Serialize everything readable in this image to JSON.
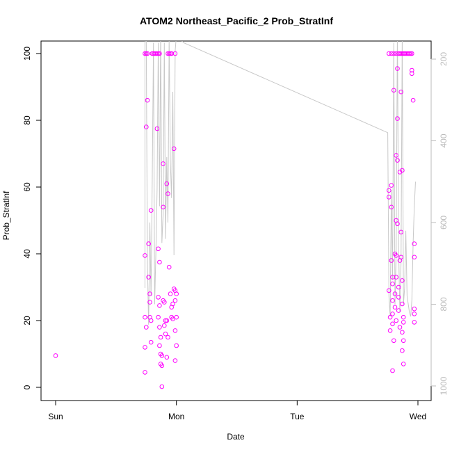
{
  "chart_data": {
    "type": "scatter",
    "title": "ATOM2 Northeast_Pacific_2 Prob_StratInf",
    "xlabel": "Date",
    "ylabel": "Prob_StratInf",
    "x_ticks": [
      "Sun",
      "Mon",
      "Tue",
      "Wed"
    ],
    "ylim": [
      0,
      100
    ],
    "y_ticks": [
      "0",
      "20",
      "40",
      "60",
      "80",
      "100"
    ],
    "y2_ticks": [
      "200",
      "400",
      "600",
      "800",
      "1000"
    ],
    "y2lim": [
      1000,
      200
    ],
    "y2_reversed": true,
    "colors": {
      "points": "#ff00ff",
      "line": "#c8c8c8",
      "right_axis": "#bbbbbb"
    },
    "series": [
      {
        "kind": "points",
        "x_units": "days since Sun 00:00",
        "data": [
          [
            0.0,
            9.5
          ],
          [
            0.74,
            100
          ],
          [
            0.75,
            100
          ],
          [
            0.76,
            100
          ],
          [
            0.74,
            39.5
          ],
          [
            0.75,
            78
          ],
          [
            0.74,
            21
          ],
          [
            0.75,
            18
          ],
          [
            0.74,
            12
          ],
          [
            0.74,
            4.5
          ],
          [
            0.76,
            86
          ],
          [
            0.77,
            43
          ],
          [
            0.77,
            33
          ],
          [
            0.78,
            28
          ],
          [
            0.78,
            25.5
          ],
          [
            0.78,
            21
          ],
          [
            0.79,
            53
          ],
          [
            0.79,
            20
          ],
          [
            0.79,
            13.5
          ],
          [
            0.8,
            100
          ],
          [
            0.81,
            100
          ],
          [
            0.82,
            100
          ],
          [
            0.83,
            100
          ],
          [
            0.84,
            100
          ],
          [
            0.85,
            100
          ],
          [
            0.86,
            100
          ],
          [
            0.84,
            77.5
          ],
          [
            0.85,
            41.5
          ],
          [
            0.86,
            37.5
          ],
          [
            0.85,
            27
          ],
          [
            0.86,
            24.5
          ],
          [
            0.85,
            21
          ],
          [
            0.86,
            18
          ],
          [
            0.87,
            15
          ],
          [
            0.86,
            12.5
          ],
          [
            0.87,
            10
          ],
          [
            0.88,
            9.5
          ],
          [
            0.87,
            7
          ],
          [
            0.88,
            6.5
          ],
          [
            0.88,
            0.2
          ],
          [
            0.89,
            67
          ],
          [
            0.89,
            54
          ],
          [
            0.89,
            26
          ],
          [
            0.9,
            25.5
          ],
          [
            0.91,
            20
          ],
          [
            0.9,
            18.5
          ],
          [
            0.91,
            16
          ],
          [
            0.92,
            61
          ],
          [
            0.92,
            20
          ],
          [
            0.93,
            15
          ],
          [
            0.92,
            9
          ],
          [
            0.93,
            100
          ],
          [
            0.94,
            100
          ],
          [
            0.95,
            100
          ],
          [
            0.96,
            100
          ],
          [
            0.99,
            100
          ],
          [
            0.93,
            58
          ],
          [
            0.94,
            36
          ],
          [
            0.95,
            28
          ],
          [
            0.96,
            24
          ],
          [
            0.96,
            21
          ],
          [
            0.97,
            20.5
          ],
          [
            0.97,
            25
          ],
          [
            0.98,
            29.5
          ],
          [
            0.98,
            71.5
          ],
          [
            0.99,
            29
          ],
          [
            1.0,
            28
          ],
          [
            0.99,
            26
          ],
          [
            1.0,
            21
          ],
          [
            0.99,
            17
          ],
          [
            1.0,
            12.5
          ],
          [
            0.99,
            8
          ],
          [
            2.76,
            100
          ],
          [
            2.78,
            100
          ],
          [
            2.8,
            100
          ],
          [
            2.82,
            100
          ],
          [
            2.84,
            100
          ],
          [
            2.85,
            100
          ],
          [
            2.86,
            100
          ],
          [
            2.87,
            100
          ],
          [
            2.88,
            100
          ],
          [
            2.89,
            100
          ],
          [
            2.9,
            100
          ],
          [
            2.91,
            100
          ],
          [
            2.92,
            100
          ],
          [
            2.93,
            100
          ],
          [
            2.94,
            100
          ],
          [
            2.95,
            100
          ],
          [
            2.76,
            59
          ],
          [
            2.76,
            57
          ],
          [
            2.76,
            29
          ],
          [
            2.77,
            21
          ],
          [
            2.77,
            17
          ],
          [
            2.78,
            60.5
          ],
          [
            2.78,
            54
          ],
          [
            2.78,
            38
          ],
          [
            2.79,
            33
          ],
          [
            2.79,
            31
          ],
          [
            2.79,
            26
          ],
          [
            2.79,
            22
          ],
          [
            2.79,
            19
          ],
          [
            2.8,
            14
          ],
          [
            2.79,
            5
          ],
          [
            2.8,
            89
          ],
          [
            2.81,
            40
          ],
          [
            2.81,
            28
          ],
          [
            2.81,
            24
          ],
          [
            2.82,
            69.5
          ],
          [
            2.82,
            50
          ],
          [
            2.82,
            39.5
          ],
          [
            2.82,
            33
          ],
          [
            2.82,
            20
          ],
          [
            2.83,
            95.5
          ],
          [
            2.83,
            80.5
          ],
          [
            2.83,
            68
          ],
          [
            2.83,
            49
          ],
          [
            2.84,
            30
          ],
          [
            2.84,
            27
          ],
          [
            2.84,
            23
          ],
          [
            2.85,
            64.5
          ],
          [
            2.85,
            38
          ],
          [
            2.85,
            18
          ],
          [
            2.86,
            88.5
          ],
          [
            2.86,
            46.5
          ],
          [
            2.86,
            39
          ],
          [
            2.87,
            65
          ],
          [
            2.87,
            32
          ],
          [
            2.87,
            25
          ],
          [
            2.87,
            16.5
          ],
          [
            2.87,
            11
          ],
          [
            2.88,
            21
          ],
          [
            2.88,
            19.5
          ],
          [
            2.88,
            14
          ],
          [
            2.88,
            7
          ],
          [
            2.95,
            95
          ],
          [
            2.95,
            94
          ],
          [
            2.96,
            86
          ],
          [
            2.97,
            43
          ],
          [
            2.97,
            39
          ],
          [
            2.97,
            23.5
          ],
          [
            2.97,
            22
          ],
          [
            2.97,
            19.5
          ]
        ]
      },
      {
        "kind": "line",
        "axis": "right",
        "x_units": "days since Sun 00:00",
        "data": [
          [
            0.74,
            760
          ],
          [
            0.74,
            160
          ],
          [
            0.75,
            140
          ],
          [
            0.76,
            700
          ],
          [
            0.77,
            850
          ],
          [
            0.78,
            600
          ],
          [
            0.79,
            780
          ],
          [
            0.8,
            500
          ],
          [
            0.81,
            160
          ],
          [
            0.82,
            800
          ],
          [
            0.83,
            680
          ],
          [
            0.84,
            520
          ],
          [
            0.85,
            160
          ],
          [
            0.86,
            560
          ],
          [
            0.87,
            120
          ],
          [
            0.88,
            650
          ],
          [
            0.89,
            580
          ],
          [
            0.9,
            160
          ],
          [
            0.91,
            640
          ],
          [
            0.92,
            440
          ],
          [
            0.93,
            600
          ],
          [
            0.94,
            150
          ],
          [
            0.95,
            450
          ],
          [
            0.96,
            540
          ],
          [
            0.97,
            280
          ],
          [
            0.98,
            680
          ],
          [
            0.99,
            180
          ],
          [
            1.0,
            140
          ],
          [
            1.03,
            150
          ],
          [
            1.06,
            160
          ],
          [
            2.75,
            380
          ],
          [
            2.76,
            780
          ],
          [
            2.77,
            830
          ],
          [
            2.78,
            520
          ],
          [
            2.79,
            740
          ],
          [
            2.8,
            160
          ],
          [
            2.81,
            800
          ],
          [
            2.82,
            680
          ],
          [
            2.83,
            120
          ],
          [
            2.84,
            660
          ],
          [
            2.85,
            820
          ],
          [
            2.86,
            700
          ],
          [
            2.87,
            140
          ],
          [
            2.88,
            800
          ],
          [
            2.89,
            760
          ],
          [
            2.9,
            620
          ],
          [
            2.91,
            780
          ],
          [
            2.92,
            800
          ],
          [
            2.93,
            820
          ],
          [
            2.94,
            830
          ],
          [
            2.95,
            790
          ],
          [
            2.96,
            650
          ],
          [
            2.97,
            560
          ],
          [
            2.98,
            500
          ]
        ]
      }
    ]
  }
}
